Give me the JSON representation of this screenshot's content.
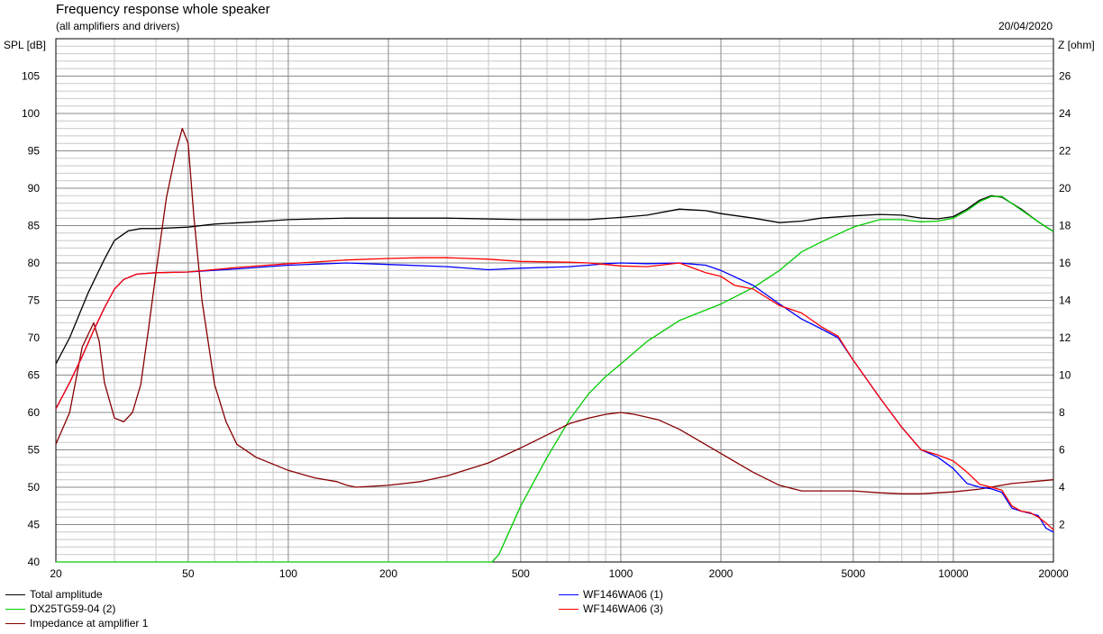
{
  "header": {
    "title": "Frequency response whole speaker",
    "subtitle": "(all amplifiers and drivers)",
    "date": "20/04/2020"
  },
  "chart_data": {
    "type": "line",
    "x_scale": "log",
    "xlim": [
      20,
      20000
    ],
    "ylim_left": [
      40,
      110
    ],
    "ylim_right": [
      0,
      28
    ],
    "ylabel_left": "SPL [dB]",
    "ylabel_right": "Z [ohm]",
    "grid": true,
    "legend_position": "bottom",
    "x_ticks": [
      20,
      50,
      100,
      200,
      500,
      1000,
      2000,
      5000,
      10000,
      20000
    ],
    "x_tick_labels": [
      "20",
      "50",
      "100",
      "200",
      "500",
      "1000",
      "2000",
      "5000",
      "10000",
      "20000"
    ],
    "y_left_ticks": [
      40,
      45,
      50,
      55,
      60,
      65,
      70,
      75,
      80,
      85,
      90,
      95,
      100,
      105
    ],
    "y_left_tick_labels": [
      "40",
      "45",
      "50",
      "55",
      "60",
      "65",
      "70",
      "75",
      "80",
      "85",
      "90",
      "95",
      "100",
      "105"
    ],
    "y_right_ticks": [
      2,
      4,
      6,
      8,
      10,
      12,
      14,
      16,
      18,
      20,
      22,
      24,
      26
    ],
    "y_right_tick_labels": [
      "2",
      "4",
      "6",
      "8",
      "10",
      "12",
      "14",
      "16",
      "18",
      "20",
      "22",
      "24",
      "26"
    ],
    "series": [
      {
        "name": "Total amplitude",
        "color": "#000000",
        "axis": "left",
        "x": [
          20,
          22,
          25,
          28,
          30,
          33,
          36,
          40,
          50,
          60,
          80,
          100,
          150,
          200,
          300,
          500,
          800,
          1000,
          1200,
          1500,
          1800,
          2000,
          2500,
          3000,
          3500,
          4000,
          5000,
          6000,
          7000,
          8000,
          9000,
          10000,
          11000,
          12000,
          13000,
          14000,
          16000,
          18000,
          20000
        ],
        "y": [
          66.5,
          70,
          76,
          80.5,
          83,
          84.3,
          84.6,
          84.6,
          84.8,
          85.2,
          85.5,
          85.8,
          86.0,
          86.0,
          86.0,
          85.8,
          85.8,
          86.1,
          86.4,
          87.2,
          87.0,
          86.6,
          86.0,
          85.4,
          85.6,
          86.0,
          86.3,
          86.5,
          86.4,
          86.0,
          85.9,
          86.2,
          87.2,
          88.4,
          89.0,
          88.8,
          87.2,
          85.5,
          84.2
        ]
      },
      {
        "name": "DX25TG59-04 (2)",
        "color": "#00cc00",
        "axis": "left",
        "x": [
          20,
          300,
          410,
          430,
          500,
          600,
          700,
          800,
          900,
          1000,
          1200,
          1500,
          2000,
          2500,
          3000,
          3500,
          4000,
          5000,
          6000,
          7000,
          8000,
          9000,
          10000,
          11000,
          12000,
          13000,
          14000,
          16000,
          18000,
          20000
        ],
        "y": [
          40,
          40,
          40,
          41,
          47.5,
          54,
          59,
          62.5,
          64.8,
          66.5,
          69.5,
          72.3,
          74.5,
          76.7,
          79,
          81.5,
          82.8,
          84.8,
          85.8,
          85.8,
          85.5,
          85.6,
          86.0,
          87.0,
          88.2,
          88.9,
          88.9,
          87.1,
          85.5,
          84.2
        ]
      },
      {
        "name": "Impedance at amplifier 1",
        "color": "#880000",
        "axis": "right",
        "x": [
          20,
          22,
          24,
          26,
          27,
          28,
          30,
          32,
          34,
          36,
          38,
          40,
          43,
          46,
          48,
          50,
          52,
          55,
          60,
          65,
          70,
          80,
          100,
          120,
          140,
          150,
          160,
          200,
          250,
          300,
          400,
          500,
          600,
          700,
          800,
          900,
          1000,
          1100,
          1300,
          1500,
          2000,
          2500,
          3000,
          3500,
          4000,
          5000,
          6000,
          7000,
          8000,
          9000,
          10000,
          12000,
          15000,
          20000
        ],
        "y": [
          6.3,
          8,
          11.5,
          12.8,
          11.8,
          9.6,
          7.7,
          7.5,
          8.0,
          9.5,
          12.5,
          15.5,
          19.5,
          22,
          23.2,
          22.4,
          18.5,
          14.0,
          9.5,
          7.5,
          6.3,
          5.6,
          4.9,
          4.5,
          4.3,
          4.1,
          4.0,
          4.1,
          4.3,
          4.6,
          5.3,
          6.1,
          6.8,
          7.4,
          7.7,
          7.9,
          8.0,
          7.9,
          7.6,
          7.1,
          5.8,
          4.8,
          4.1,
          3.8,
          3.8,
          3.8,
          3.7,
          3.65,
          3.65,
          3.7,
          3.75,
          3.9,
          4.2,
          4.4
        ]
      },
      {
        "name": "WF146WA06 (1)",
        "color": "#0000ff",
        "axis": "left",
        "x": [
          20,
          22,
          24,
          26,
          28,
          30,
          32,
          35,
          40,
          50,
          70,
          100,
          150,
          200,
          300,
          400,
          500,
          700,
          800,
          900,
          1000,
          1200,
          1500,
          1800,
          2000,
          2500,
          3000,
          3500,
          4000,
          4500,
          5000,
          6000,
          7000,
          8000,
          9000,
          10000,
          11000,
          12000,
          13000,
          14000,
          15000,
          16000,
          17000,
          18000,
          19000,
          20000
        ],
        "y": [
          60.5,
          64,
          67.5,
          71,
          74,
          76.5,
          77.8,
          78.5,
          78.7,
          78.8,
          79.2,
          79.7,
          80.0,
          79.8,
          79.5,
          79.1,
          79.3,
          79.5,
          79.7,
          79.9,
          80.0,
          79.9,
          80.0,
          79.7,
          79.0,
          77.0,
          74.5,
          72.5,
          71.2,
          70.0,
          67.0,
          62.0,
          58.0,
          55.0,
          54.0,
          52.5,
          50.5,
          50.0,
          49.8,
          49.3,
          47.2,
          46.8,
          46.5,
          46.2,
          44.5,
          44.0
        ]
      },
      {
        "name": "WF146WA06 (3)",
        "color": "#ff0000",
        "axis": "left",
        "x": [
          20,
          22,
          24,
          26,
          28,
          30,
          32,
          35,
          40,
          50,
          70,
          100,
          150,
          200,
          250,
          300,
          400,
          500,
          700,
          800,
          900,
          1000,
          1200,
          1500,
          1800,
          2000,
          2200,
          2500,
          3000,
          3500,
          4000,
          4500,
          5000,
          6000,
          7000,
          8000,
          9000,
          10000,
          11000,
          12000,
          13000,
          14000,
          15000,
          16000,
          17000,
          18000,
          19000,
          20000
        ],
        "y": [
          60.5,
          64,
          67.5,
          71,
          74,
          76.5,
          77.8,
          78.5,
          78.7,
          78.8,
          79.4,
          79.9,
          80.4,
          80.6,
          80.7,
          80.7,
          80.5,
          80.2,
          80.1,
          80.0,
          79.8,
          79.6,
          79.5,
          80.0,
          78.7,
          78.2,
          77.0,
          76.5,
          74.3,
          73.3,
          71.5,
          70.2,
          67.0,
          62.0,
          58.0,
          55.0,
          54.3,
          53.5,
          52.0,
          50.4,
          50.0,
          49.6,
          47.5,
          46.8,
          46.6,
          46.0,
          45.2,
          44.3
        ]
      }
    ]
  }
}
